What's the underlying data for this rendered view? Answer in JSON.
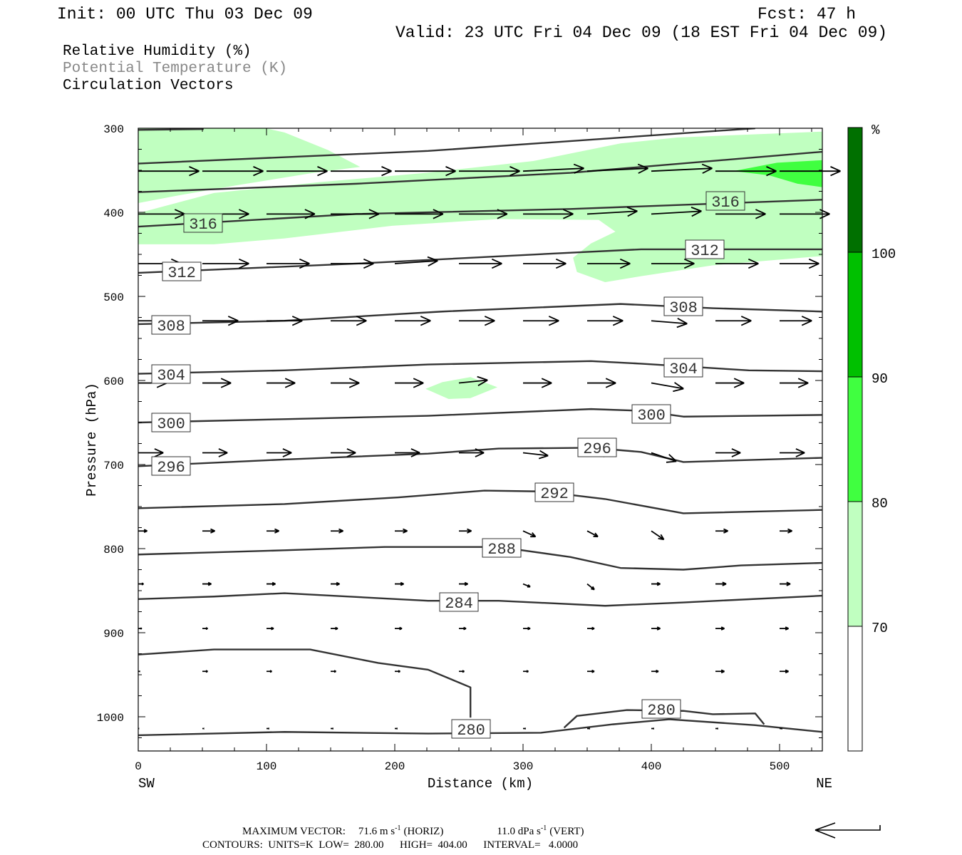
{
  "header": {
    "init": "Init: 00 UTC Thu 03 Dec 09",
    "fcst": "Fcst:   47 h",
    "valid": "Valid: 23 UTC Fri 04 Dec 09 (18 EST Fri 04 Dec 09)"
  },
  "legend": {
    "items": [
      "Relative Humidity (%)",
      "Potential Temperature (K)",
      "Circulation Vectors"
    ],
    "colors": [
      "#000000",
      "#888888",
      "#000000"
    ]
  },
  "colorbar": {
    "unit": "%",
    "labels": [
      "100",
      "90",
      "80",
      "70"
    ],
    "colors": [
      "#ffffff",
      "#c0ffc0",
      "#40ff40",
      "#00c000",
      "#007000"
    ]
  },
  "footer": {
    "max_vector_label": "MAXIMUM VECTOR:",
    "horiz": "71.6 m s",
    "horiz_unit": "(HORIZ)",
    "vert": "11.0 dPa s",
    "vert_unit": "(VERT)",
    "exp": "-1",
    "contours": "CONTOURS:  UNITS=K  LOW=  280.00      HIGH=  404.00      INTERVAL=   4.0000"
  },
  "chart_data": {
    "type": "cross-section",
    "xlabel": "Distance (km)",
    "ylabel": "Pressure (hPa)",
    "xlim": [
      0,
      533
    ],
    "ylim": [
      1040,
      300
    ],
    "x_ticks": [
      "0",
      "100",
      "200",
      "300",
      "400",
      "500"
    ],
    "y_ticks": [
      "300",
      "400",
      "500",
      "600",
      "700",
      "800",
      "900",
      "1000"
    ],
    "x_ends": [
      "SW",
      "NE"
    ],
    "rh_fill": [
      {
        "level": "70-80",
        "color": "#c0ffc0",
        "points": [
          [
            0,
            401
          ],
          [
            59,
            377
          ],
          [
            142,
            364
          ],
          [
            225,
            353
          ],
          [
            308,
            339
          ],
          [
            376,
            318
          ],
          [
            420,
            311
          ],
          [
            533,
            304
          ],
          [
            533,
            452
          ],
          [
            448,
            463
          ],
          [
            392,
            476
          ],
          [
            364,
            483
          ],
          [
            342,
            471
          ],
          [
            339,
            454
          ],
          [
            353,
            437
          ],
          [
            372,
            423
          ],
          [
            359,
            409
          ],
          [
            281,
            408
          ],
          [
            198,
            416
          ],
          [
            114,
            431
          ],
          [
            59,
            438
          ],
          [
            0,
            438
          ]
        ]
      },
      {
        "level": "80-90",
        "color": "#40ff40",
        "points": [
          [
            464,
            351
          ],
          [
            498,
            341
          ],
          [
            533,
            338
          ],
          [
            533,
            370
          ],
          [
            514,
            366
          ],
          [
            492,
            356
          ]
        ]
      },
      {
        "level": "70-80",
        "color": "#c0ffc0",
        "points": [
          [
            224,
            610
          ],
          [
            237,
            602
          ],
          [
            259,
            596
          ],
          [
            280,
            608
          ],
          [
            259,
            621
          ],
          [
            242,
            622
          ]
        ]
      },
      {
        "level": "70-80",
        "color": "#c0ffc0",
        "points": [
          [
            0,
            291
          ],
          [
            0,
            291
          ]
        ]
      },
      {
        "level": "70-80",
        "color": "#c0ffc0",
        "points": [
          [
            0,
            291
          ],
          [
            31,
            288
          ],
          [
            76,
            292
          ],
          [
            114,
            305
          ],
          [
            148,
            326
          ],
          [
            173,
            346
          ],
          [
            137,
            353
          ],
          [
            76,
            368
          ],
          [
            31,
            380
          ],
          [
            0,
            389
          ]
        ]
      }
    ],
    "contours": [
      {
        "level": 328,
        "points": [
          [
            0,
            302
          ],
          [
            51,
            301
          ]
        ]
      },
      {
        "level": 324,
        "points": [
          [
            0,
            342
          ],
          [
            226,
            327
          ],
          [
            481,
            300
          ]
        ]
      },
      {
        "level": 320,
        "points": [
          [
            0,
            376
          ],
          [
            170,
            366
          ],
          [
            337,
            353
          ],
          [
            533,
            328
          ]
        ]
      },
      {
        "level": 316,
        "points": [
          [
            0,
            417
          ],
          [
            170,
            402
          ],
          [
            337,
            396
          ],
          [
            533,
            385
          ]
        ]
      },
      {
        "level": 312,
        "points": [
          [
            0,
            472
          ],
          [
            170,
            461
          ],
          [
            337,
            448
          ],
          [
            392,
            444
          ],
          [
            533,
            444
          ]
        ]
      },
      {
        "level": 308,
        "points": [
          [
            0,
            533
          ],
          [
            114,
            529
          ],
          [
            237,
            518
          ],
          [
            376,
            509
          ],
          [
            448,
            514
          ],
          [
            533,
            518
          ]
        ]
      },
      {
        "level": 304,
        "points": [
          [
            0,
            592
          ],
          [
            114,
            588
          ],
          [
            226,
            581
          ],
          [
            353,
            577
          ],
          [
            392,
            580
          ],
          [
            476,
            588
          ],
          [
            533,
            589
          ]
        ]
      },
      {
        "level": 300,
        "points": [
          [
            0,
            650
          ],
          [
            114,
            646
          ],
          [
            226,
            642
          ],
          [
            353,
            634
          ],
          [
            392,
            636
          ],
          [
            425,
            643
          ],
          [
            533,
            641
          ]
        ]
      },
      {
        "level": 296,
        "points": [
          [
            0,
            702
          ],
          [
            114,
            694
          ],
          [
            226,
            687
          ],
          [
            281,
            681
          ],
          [
            353,
            680
          ],
          [
            392,
            685
          ],
          [
            425,
            697
          ],
          [
            533,
            692
          ]
        ]
      },
      {
        "level": 292,
        "points": [
          [
            0,
            752
          ],
          [
            114,
            747
          ],
          [
            203,
            739
          ],
          [
            270,
            731
          ],
          [
            314,
            732
          ],
          [
            364,
            741
          ],
          [
            425,
            758
          ],
          [
            533,
            754
          ]
        ]
      },
      {
        "level": 288,
        "points": [
          [
            0,
            807
          ],
          [
            114,
            802
          ],
          [
            192,
            798
          ],
          [
            281,
            798
          ],
          [
            337,
            810
          ],
          [
            376,
            823
          ],
          [
            425,
            825
          ],
          [
            470,
            820
          ],
          [
            533,
            817
          ]
        ]
      },
      {
        "level": 284,
        "points": [
          [
            0,
            860
          ],
          [
            59,
            857
          ],
          [
            114,
            853
          ],
          [
            226,
            862
          ],
          [
            281,
            862
          ],
          [
            364,
            868
          ],
          [
            425,
            864
          ],
          [
            533,
            856
          ]
        ]
      },
      {
        "level": 280,
        "points": [
          [
            0,
            926
          ],
          [
            59,
            920
          ],
          [
            134,
            920
          ],
          [
            187,
            936
          ],
          [
            226,
            944
          ],
          [
            259,
            965
          ],
          [
            259,
            1001
          ]
        ]
      },
      {
        "level": 280,
        "points": [
          [
            0,
            1022
          ],
          [
            114,
            1018
          ],
          [
            226,
            1020
          ],
          [
            314,
            1019
          ],
          [
            370,
            1009
          ],
          [
            414,
            1003
          ],
          [
            481,
            1010
          ],
          [
            533,
            1018
          ]
        ]
      },
      {
        "level": 280,
        "points": [
          [
            332,
            1013
          ],
          [
            342,
            999
          ],
          [
            381,
            992
          ],
          [
            425,
            993
          ],
          [
            448,
            997
          ],
          [
            481,
            996
          ],
          [
            488,
            1009
          ]
        ]
      }
    ],
    "contour_labels": [
      "316",
      "316",
      "312",
      "312",
      "308",
      "308",
      "304",
      "304",
      "300",
      "300",
      "296",
      "296",
      "292",
      "288",
      "284",
      "280",
      "280"
    ],
    "vectors": {
      "x": [
        0,
        50,
        100,
        150,
        200,
        250,
        300,
        350,
        400,
        450,
        500
      ],
      "rows": [
        {
          "p": 351,
          "u": [
            68,
            68,
            68,
            68,
            68,
            68,
            68,
            68,
            68,
            68,
            68
          ],
          "w": [
            0,
            0,
            0,
            0,
            0,
            0,
            -1,
            -1,
            -1,
            0,
            0
          ]
        },
        {
          "p": 402,
          "u": [
            52,
            52,
            54,
            54,
            54,
            54,
            56,
            56,
            56,
            56,
            56
          ],
          "w": [
            0,
            0,
            0,
            0,
            0,
            0,
            0,
            -1,
            -1,
            0,
            0
          ]
        },
        {
          "p": 461,
          "u": [
            48,
            52,
            48,
            48,
            48,
            48,
            48,
            48,
            48,
            48,
            44
          ],
          "w": [
            0,
            0,
            0,
            0,
            -1,
            0,
            0,
            0,
            0,
            0,
            0
          ]
        },
        {
          "p": 529,
          "u": [
            40,
            40,
            40,
            40,
            40,
            40,
            40,
            40,
            40,
            40,
            36
          ],
          "w": [
            0,
            0,
            0,
            0,
            0,
            0,
            0,
            0,
            1,
            0,
            0
          ]
        },
        {
          "p": 603,
          "u": [
            32,
            32,
            32,
            32,
            32,
            32,
            32,
            32,
            36,
            32,
            32
          ],
          "w": [
            0,
            0,
            0,
            0,
            0,
            -1,
            0,
            0,
            2,
            0,
            0
          ]
        },
        {
          "p": 686,
          "u": [
            28,
            28,
            28,
            28,
            28,
            28,
            28,
            28,
            28,
            28,
            28
          ],
          "w": [
            0,
            0,
            0,
            0,
            0,
            0,
            1,
            0,
            3,
            0,
            0
          ]
        },
        {
          "p": 779,
          "u": [
            10,
            14,
            14,
            14,
            14,
            14,
            14,
            12,
            14,
            14,
            14
          ],
          "w": [
            0,
            0,
            0,
            0,
            0,
            0,
            2,
            2,
            3,
            0,
            0
          ]
        },
        {
          "p": 842,
          "u": [
            6,
            10,
            10,
            10,
            10,
            10,
            8,
            8,
            10,
            12,
            12
          ],
          "w": [
            0,
            0,
            0,
            0,
            0,
            0,
            1,
            2,
            0,
            0,
            0
          ]
        },
        {
          "p": 895,
          "u": [
            4,
            6,
            8,
            8,
            8,
            8,
            8,
            8,
            10,
            10,
            10
          ],
          "w": [
            0,
            0,
            0,
            0,
            0,
            0,
            0,
            0,
            0,
            0,
            0
          ]
        },
        {
          "p": 946,
          "u": [
            2,
            6,
            6,
            6,
            6,
            6,
            6,
            8,
            8,
            10,
            10
          ],
          "w": [
            0,
            0,
            0,
            0,
            0,
            0,
            0,
            0,
            0,
            0,
            0
          ]
        },
        {
          "p": 1014,
          "u": [
            1,
            2,
            3,
            3,
            3,
            3,
            3,
            3,
            3,
            3,
            3
          ],
          "w": [
            0,
            0,
            0,
            0,
            0,
            0,
            0,
            0,
            0,
            0,
            0
          ]
        }
      ]
    }
  }
}
